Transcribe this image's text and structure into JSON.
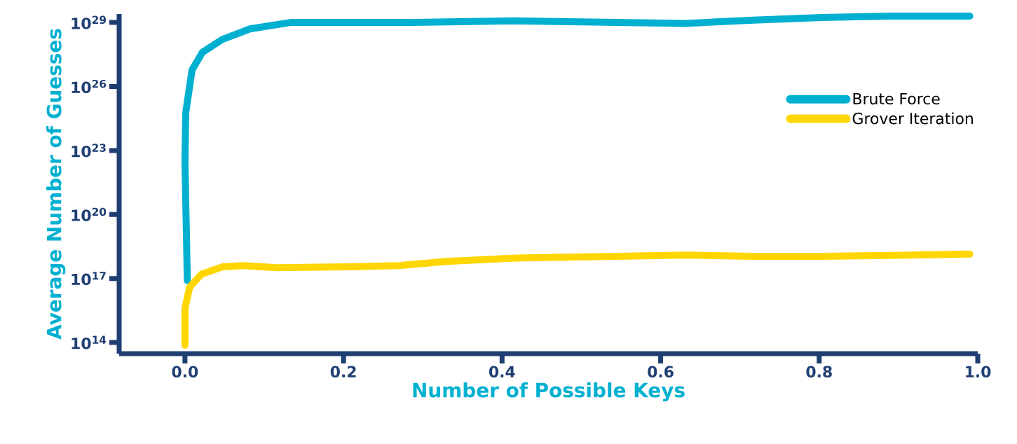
{
  "chart_data": {
    "type": "line",
    "xlabel": "Number of Possible Keys",
    "ylabel": "Average Number of Guesses",
    "log": "y",
    "xlim": [
      -0.083,
      1.0
    ],
    "ylim": [
      30000000000000.0,
      2.5e+29
    ],
    "xticks": [
      {
        "value": 0,
        "label": "0.0"
      },
      {
        "value": 0.2,
        "label": "0.2"
      },
      {
        "value": 0.4,
        "label": "0.4"
      },
      {
        "value": 0.6,
        "label": "0.6"
      },
      {
        "value": 0.8,
        "label": "0.8"
      },
      {
        "value": 1.0,
        "label": "1.0"
      }
    ],
    "yticks": [
      {
        "value": 100000000000000.0,
        "label": "10$^{14}$"
      },
      {
        "value": 1e+17,
        "label": "10$^{17}$"
      },
      {
        "value": 1e+20,
        "label": "10$^{20}$"
      },
      {
        "value": 1e+23,
        "label": "10$^{23}$"
      },
      {
        "value": 1e+26,
        "label": "10$^{26}$"
      },
      {
        "value": 1e+29,
        "label": "10$^{29}$"
      }
    ],
    "grid": false,
    "legend": "right",
    "marker": "none",
    "line_style": "solid",
    "series": [
      {
        "name": "Brute Force",
        "color": "#00b0d0",
        "x": [
          0.003,
          0,
          0.001,
          0.009,
          0.022,
          0.047,
          0.082,
          0.133,
          0.206,
          0.288,
          0.417,
          0.545,
          0.631,
          0.717,
          0.803,
          0.888,
          0.99
        ],
        "values": [
          8e+16,
          3e+22,
          6e+24,
          6e+26,
          4e+27,
          1.6e+28,
          5e+28,
          1e+29,
          1e+29,
          1e+29,
          1.2e+29,
          1e+29,
          9e+28,
          1.3e+29,
          1.7e+29,
          2e+29,
          2e+29
        ]
      },
      {
        "name": "Grover Iteration",
        "color": "#ffd600",
        "x": [
          0,
          0,
          0.006,
          0.021,
          0.047,
          0.073,
          0.116,
          0.202,
          0.27,
          0.33,
          0.417,
          0.545,
          0.631,
          0.717,
          0.803,
          0.888,
          0.99
        ],
        "values": [
          74000000000000.0,
          4000000000000000.0,
          4e+16,
          1.6e+17,
          3.5e+17,
          4e+17,
          3.2e+17,
          3.5e+17,
          4e+17,
          6.3e+17,
          9e+17,
          1.1e+18,
          1.25e+18,
          1.1e+18,
          1.1e+18,
          1.2e+18,
          1.4e+18
        ]
      }
    ]
  }
}
